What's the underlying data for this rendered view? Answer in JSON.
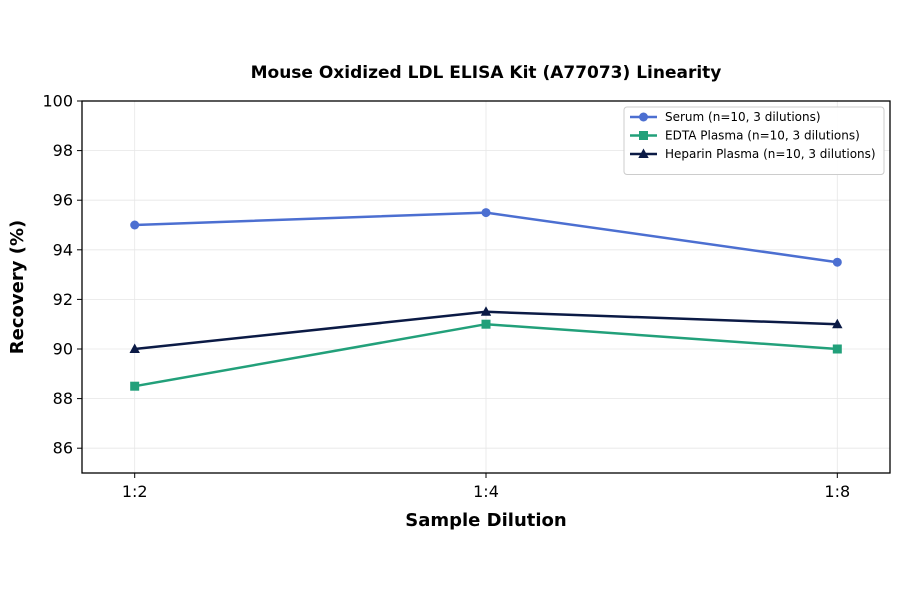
{
  "chart_data": {
    "type": "line",
    "title": "Mouse Oxidized LDL ELISA Kit (A77073) Linearity",
    "xlabel": "Sample Dilution",
    "ylabel": "Recovery (%)",
    "categories": [
      "1:2",
      "1:4",
      "1:8"
    ],
    "ylim": [
      85,
      100
    ],
    "yticks": [
      86,
      88,
      90,
      92,
      94,
      96,
      98,
      100
    ],
    "grid": true,
    "legend_position": "top-right",
    "series": [
      {
        "name": "Serum (n=10, 3 dilutions)",
        "values": [
          95.0,
          95.5,
          93.5
        ],
        "color": "#4C6FD1",
        "marker": "circle"
      },
      {
        "name": "EDTA Plasma (n=10, 3 dilutions)",
        "values": [
          88.5,
          91.0,
          90.0
        ],
        "color": "#22A07A",
        "marker": "square"
      },
      {
        "name": "Heparin Plasma (n=10, 3 dilutions)",
        "values": [
          90.0,
          91.5,
          91.0
        ],
        "color": "#0B1A45",
        "marker": "triangle"
      }
    ]
  }
}
